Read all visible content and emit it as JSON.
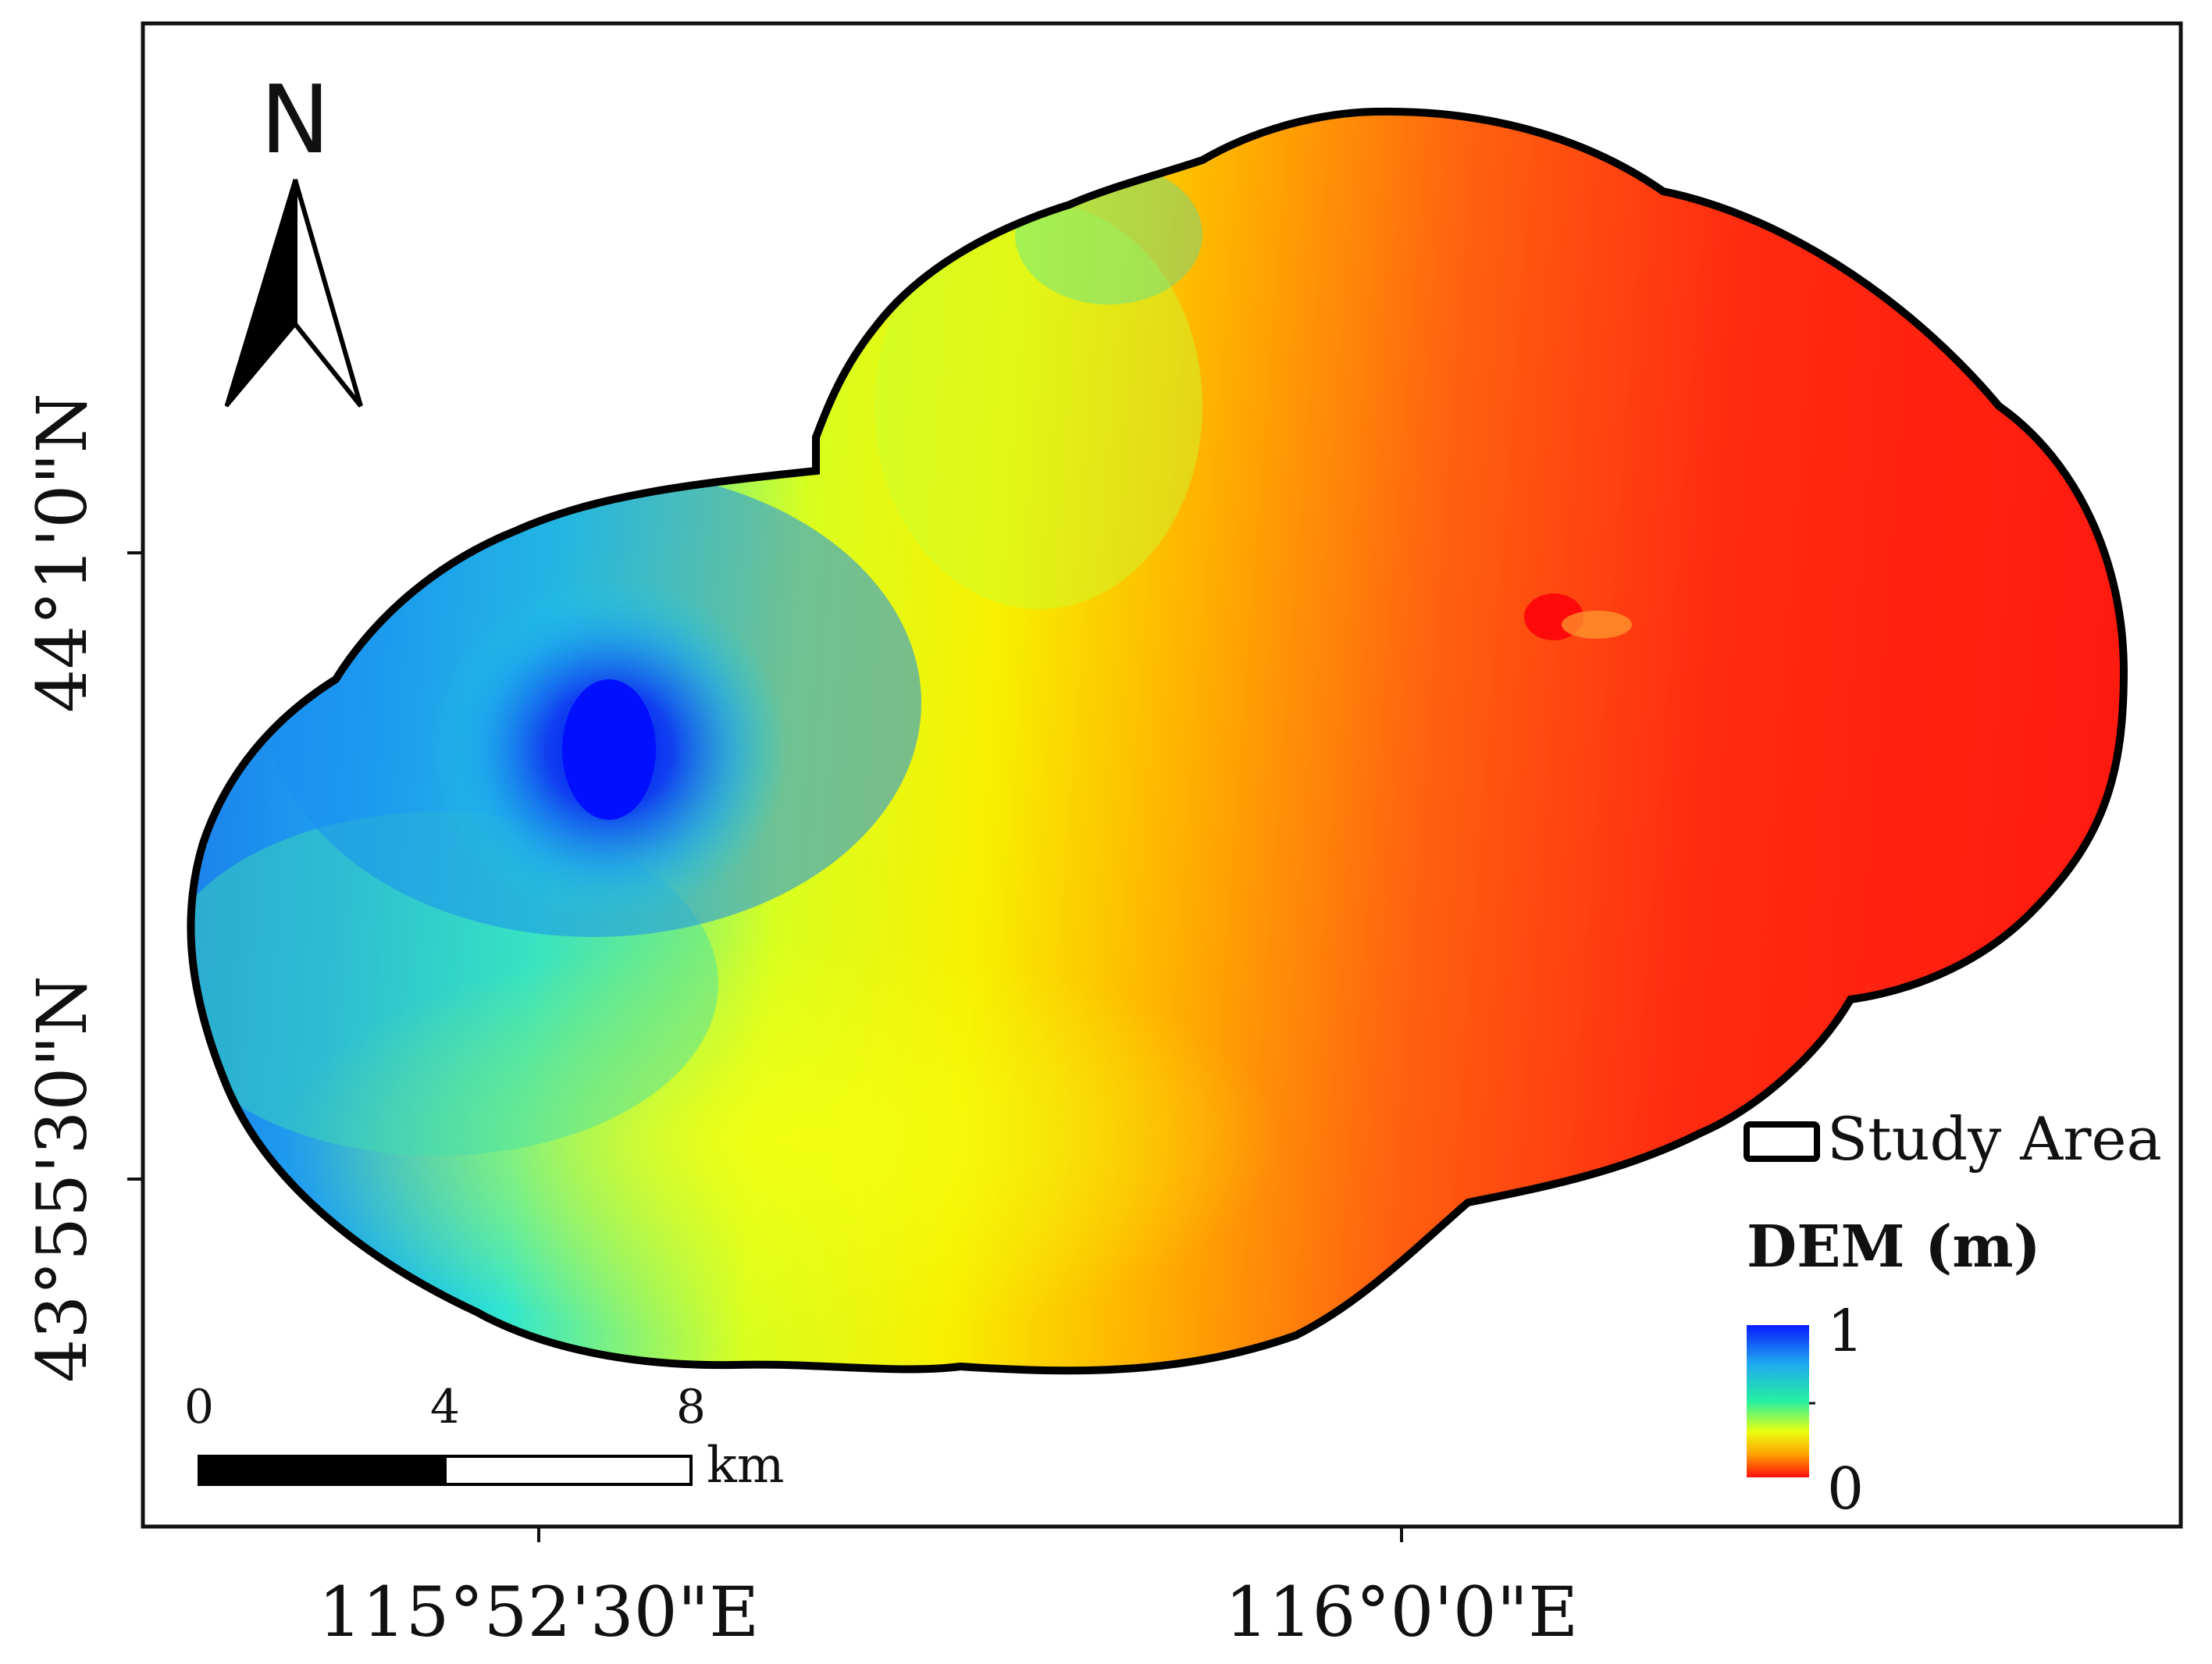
{
  "map": {
    "north_label": "N",
    "graticule": {
      "lon_labels": [
        "115°52'30\"E",
        "116°0'0\"E"
      ],
      "lat_labels": [
        "44°1'0\"N",
        "43°55'30\"N"
      ]
    },
    "scale_bar": {
      "ticks": [
        "0",
        "4",
        "8"
      ],
      "unit": "km"
    },
    "legend": {
      "study_area_label": "Study Area",
      "dem_title": "DEM (m)",
      "dem_max": "1",
      "dem_min": "0",
      "colors": [
        "#0a1aff",
        "#1fa8f0",
        "#25f0c0",
        "#eaff10",
        "#ffb000",
        "#ff1010"
      ]
    },
    "icons": {
      "north": "north-arrow-icon",
      "study_area": "study-area-swatch-icon"
    }
  }
}
